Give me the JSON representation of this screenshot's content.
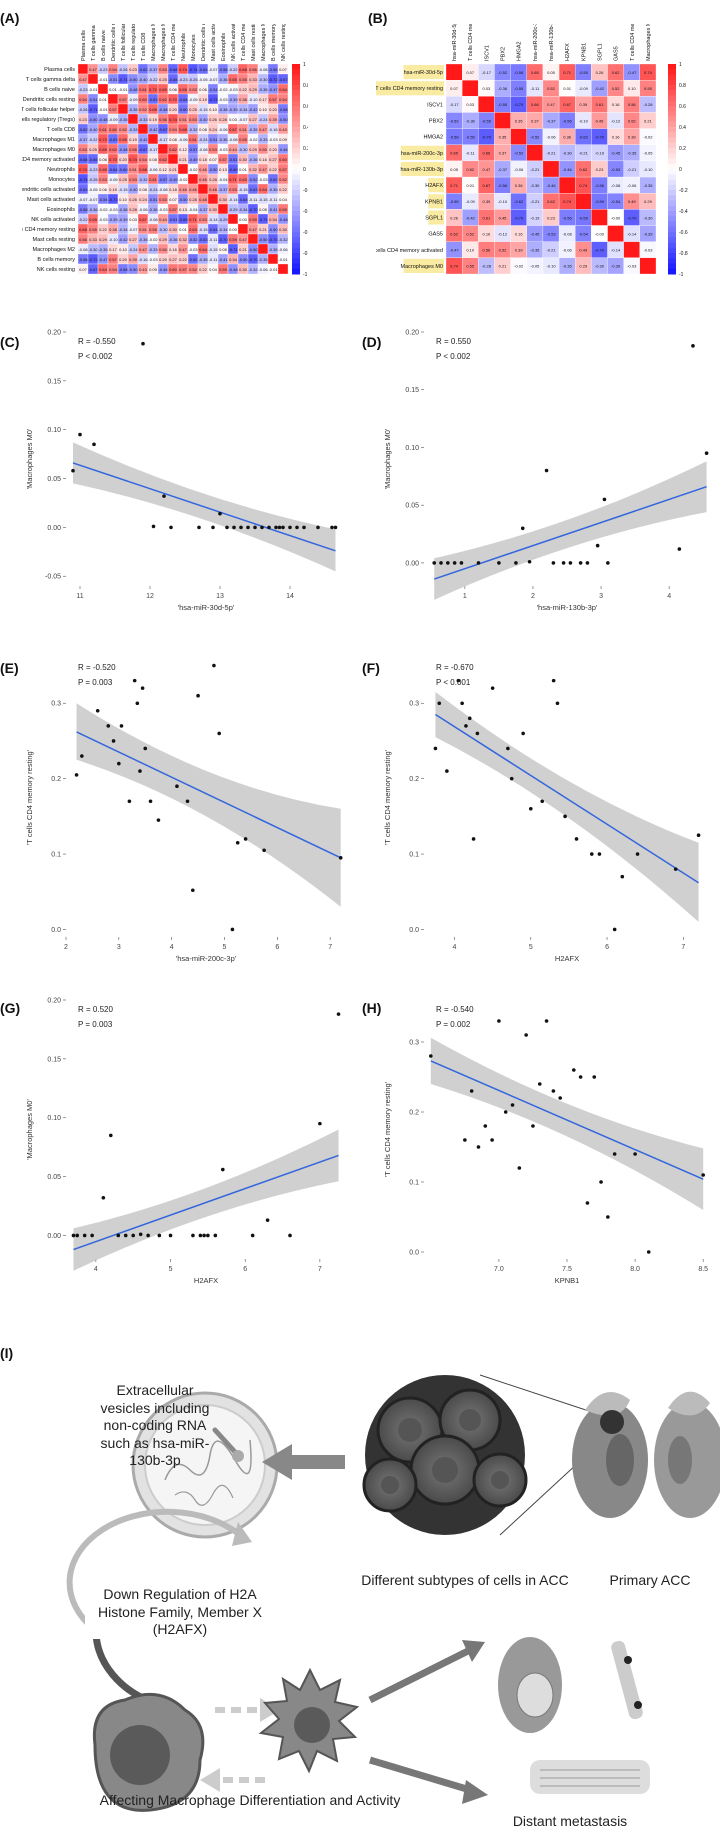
{
  "panels": {
    "A": "(A)",
    "B": "(B)",
    "C": "(C)",
    "D": "(D)",
    "E": "(E)",
    "F": "(F)",
    "G": "(G)",
    "H": "(H)",
    "I": "(I)"
  },
  "heatmap_a": {
    "labels": [
      "Plasma cells",
      "T cells gamma delta",
      "B cells naive",
      "Dendritic cells resting",
      "T cells follicular helper",
      "T cells regulatory (Tregs)",
      "T cells CD8",
      "Macrophages M1",
      "Macrophages M0",
      "T cells CD4 memory activated",
      "Neutrophils",
      "Monocytes",
      "Dendritic cells activated",
      "Mast cells activated",
      "Eosinophils",
      "NK cells activated",
      "T cells CD4 memory resting",
      "Mast cells resting",
      "Macrophages M2",
      "B cells memory",
      "NK cells resting"
    ],
    "colorbar_ticks": [
      "1",
      "0.8",
      "0.6",
      "0.4",
      "0.2",
      "0",
      "-0.2",
      "-0.4",
      "-0.6",
      "-0.8",
      "-1"
    ]
  },
  "heatmap_b": {
    "labels": [
      "hsa-miR-30d-5p",
      "T cells CD4 memory resting",
      "ISCV1",
      "PBX2",
      "HMGA2",
      "hsa-miR-200c-3p",
      "hsa-miR-130b-3p",
      "H2AFX",
      "KPNB1",
      "SGPL1",
      "GAS5",
      "T cells CD4 memory activated",
      "Macrophages M0"
    ],
    "highlighted": [
      "hsa-miR-30d-5p",
      "T cells CD4 memory resting",
      "hsa-miR-200c-3p",
      "hsa-miR-130b-3p",
      "H2AFX",
      "KPNB1",
      "SGPL1",
      "Macrophages M0"
    ],
    "colorbar_ticks": [
      "1",
      "0.8",
      "0.6",
      "0.4",
      "0.2",
      "0",
      "-0.2",
      "-0.4",
      "-0.6",
      "-0.8",
      "-1"
    ]
  },
  "scatters": {
    "C": {
      "r_label": "R = -0.550",
      "p_label": "P < 0.002",
      "xlabel": "'hsa-miR-30d-5p'",
      "ylabel": "'Macrophages M0'",
      "xticks": [
        "11",
        "12",
        "13",
        "14"
      ],
      "yticks": [
        "-0.05",
        "0.00",
        "0.05",
        "0.10",
        "0.15",
        "0.20"
      ]
    },
    "D": {
      "r_label": "R = 0.550",
      "p_label": "P < 0.002",
      "xlabel": "'hsa-miR-130b-3p'",
      "ylabel": "'Macrophages M0'",
      "xticks": [
        "1",
        "2",
        "3",
        "4"
      ],
      "yticks": [
        "0.00",
        "0.05",
        "0.10",
        "0.15",
        "0.20"
      ]
    },
    "E": {
      "r_label": "R = -0.520",
      "p_label": "P = 0.003",
      "xlabel": "'hsa-miR-200c-3p'",
      "ylabel": "'T cells CD4 memory resting'",
      "xticks": [
        "2",
        "3",
        "4",
        "5",
        "6",
        "7"
      ],
      "yticks": [
        "0.0",
        "0.1",
        "0.2",
        "0.3"
      ]
    },
    "F": {
      "r_label": "R = -0.670",
      "p_label": "P < 0.001",
      "xlabel": "H2AFX",
      "ylabel": "'T cells CD4 memory resting'",
      "xticks": [
        "4",
        "5",
        "6",
        "7"
      ],
      "yticks": [
        "0.0",
        "0.1",
        "0.2",
        "0.3"
      ]
    },
    "G": {
      "r_label": "R = 0.520",
      "p_label": "P = 0.003",
      "xlabel": "H2AFX",
      "ylabel": "'Macrophages M0'",
      "xticks": [
        "4",
        "5",
        "6",
        "7"
      ],
      "yticks": [
        "0.00",
        "0.05",
        "0.10",
        "0.15",
        "0.20"
      ]
    },
    "H": {
      "r_label": "R = -0.540",
      "p_label": "P = 0.002",
      "xlabel": "KPNB1",
      "ylabel": "'T cells CD4 memory resting'",
      "xticks": [
        "7.0",
        "7.5",
        "8.0",
        "8.5"
      ],
      "yticks": [
        "0.0",
        "0.1",
        "0.2",
        "0.3"
      ]
    }
  },
  "chart_data": [
    {
      "type": "scatter",
      "panel": "C",
      "xlim": [
        10.8,
        14.8
      ],
      "ylim": [
        -0.06,
        0.2
      ],
      "x": [
        10.9,
        11.0,
        11.2,
        11.9,
        12.05,
        12.2,
        12.3,
        12.7,
        12.9,
        13.0,
        13.1,
        13.2,
        13.3,
        13.4,
        13.5,
        13.6,
        13.7,
        13.8,
        13.85,
        13.9,
        14.0,
        14.1,
        14.2,
        14.4,
        14.6,
        14.65
      ],
      "y": [
        0.058,
        0.095,
        0.085,
        0.188,
        0.001,
        0.032,
        0.0,
        0.0,
        0.0,
        0.014,
        0.0,
        0.0,
        0.0,
        0.0,
        0.0,
        0.0,
        0.0,
        0.0,
        0.0,
        0.0,
        0.0,
        0.0,
        0.0,
        0.0,
        0.0,
        0.0
      ],
      "fit": {
        "x": [
          10.9,
          14.65
        ],
        "y": [
          0.066,
          -0.024
        ],
        "ci_low": [
          0.045,
          -0.045
        ],
        "ci_high": [
          0.087,
          -0.002
        ]
      }
    },
    {
      "type": "scatter",
      "panel": "D",
      "xlim": [
        0.4,
        4.6
      ],
      "ylim": [
        -0.02,
        0.2
      ],
      "x": [
        0.55,
        0.65,
        0.75,
        0.85,
        0.95,
        1.2,
        1.5,
        1.75,
        1.85,
        1.95,
        2.2,
        2.3,
        2.45,
        2.55,
        2.7,
        2.8,
        2.95,
        3.05,
        3.1,
        4.15,
        4.35,
        4.55
      ],
      "y": [
        0.0,
        0.0,
        0.0,
        0.0,
        0.0,
        0.0,
        0.0,
        0.0,
        0.03,
        0.001,
        0.08,
        0.0,
        0.0,
        0.0,
        0.0,
        0.0,
        0.015,
        0.055,
        0.0,
        0.012,
        0.188,
        0.095
      ],
      "fit": {
        "x": [
          0.55,
          4.55
        ],
        "y": [
          -0.014,
          0.066
        ],
        "ci_low": [
          -0.032,
          0.044
        ],
        "ci_high": [
          0.004,
          0.088
        ]
      }
    },
    {
      "type": "scatter",
      "panel": "E",
      "xlim": [
        2.0,
        7.3
      ],
      "ylim": [
        -0.01,
        0.36
      ],
      "x": [
        2.2,
        2.3,
        2.6,
        2.8,
        2.9,
        3.0,
        3.05,
        3.2,
        3.3,
        3.35,
        3.4,
        3.45,
        3.5,
        3.6,
        3.75,
        4.1,
        4.3,
        4.4,
        4.5,
        4.8,
        4.9,
        5.15,
        5.25,
        5.4,
        5.75,
        7.2
      ],
      "y": [
        0.205,
        0.23,
        0.29,
        0.27,
        0.25,
        0.22,
        0.27,
        0.17,
        0.33,
        0.3,
        0.21,
        0.32,
        0.24,
        0.17,
        0.145,
        0.19,
        0.17,
        0.052,
        0.31,
        0.35,
        0.26,
        0.0,
        0.115,
        0.12,
        0.105,
        0.095
      ],
      "fit": {
        "x": [
          2.2,
          7.2
        ],
        "y": [
          0.262,
          0.095
        ],
        "ci_low": [
          0.225,
          0.03
        ],
        "ci_high": [
          0.3,
          0.16
        ]
      }
    },
    {
      "type": "scatter",
      "panel": "F",
      "xlim": [
        3.6,
        7.35
      ],
      "ylim": [
        -0.01,
        0.36
      ],
      "x": [
        3.75,
        3.8,
        3.9,
        4.05,
        4.1,
        4.15,
        4.2,
        4.25,
        4.3,
        4.5,
        4.7,
        4.75,
        4.9,
        5.0,
        5.15,
        5.3,
        5.35,
        5.45,
        5.6,
        5.8,
        5.9,
        6.1,
        6.2,
        6.4,
        6.9,
        7.2
      ],
      "y": [
        0.24,
        0.3,
        0.21,
        0.33,
        0.3,
        0.27,
        0.28,
        0.12,
        0.26,
        0.32,
        0.24,
        0.2,
        0.26,
        0.16,
        0.17,
        0.33,
        0.3,
        0.15,
        0.12,
        0.1,
        0.1,
        0.0,
        0.07,
        0.1,
        0.08,
        0.125
      ],
      "fit": {
        "x": [
          3.75,
          7.2
        ],
        "y": [
          0.285,
          0.062
        ],
        "ci_low": [
          0.255,
          0.01
        ],
        "ci_high": [
          0.315,
          0.115
        ]
      }
    },
    {
      "type": "scatter",
      "panel": "G",
      "xlim": [
        3.6,
        7.35
      ],
      "ylim": [
        -0.02,
        0.2
      ],
      "x": [
        3.7,
        3.75,
        3.85,
        3.95,
        4.1,
        4.2,
        4.3,
        4.4,
        4.5,
        4.6,
        4.7,
        4.85,
        5.0,
        5.3,
        5.4,
        5.45,
        5.5,
        5.6,
        5.7,
        6.1,
        6.3,
        6.6,
        7.0,
        7.25
      ],
      "y": [
        0.0,
        0.0,
        0.0,
        0.0,
        0.032,
        0.085,
        0.0,
        0.0,
        0.0,
        0.001,
        0.0,
        0.0,
        0.0,
        0.0,
        0.0,
        0.0,
        0.0,
        0.0,
        0.056,
        0.0,
        0.013,
        0.0,
        0.095,
        0.188
      ],
      "fit": {
        "x": [
          3.7,
          7.25
        ],
        "y": [
          -0.012,
          0.068
        ],
        "ci_low": [
          -0.03,
          0.046
        ],
        "ci_high": [
          0.006,
          0.09
        ]
      }
    },
    {
      "type": "scatter",
      "panel": "H",
      "xlim": [
        6.45,
        8.55
      ],
      "ylim": [
        -0.01,
        0.36
      ],
      "x": [
        6.5,
        6.75,
        6.8,
        6.85,
        6.9,
        6.95,
        7.0,
        7.05,
        7.1,
        7.15,
        7.2,
        7.25,
        7.3,
        7.35,
        7.4,
        7.45,
        7.55,
        7.6,
        7.65,
        7.7,
        7.75,
        7.8,
        7.85,
        8.0,
        8.1,
        8.5
      ],
      "y": [
        0.28,
        0.16,
        0.23,
        0.15,
        0.18,
        0.16,
        0.33,
        0.2,
        0.21,
        0.12,
        0.31,
        0.18,
        0.24,
        0.33,
        0.23,
        0.22,
        0.26,
        0.25,
        0.07,
        0.25,
        0.1,
        0.05,
        0.14,
        0.14,
        0.0,
        0.11
      ],
      "fit": {
        "x": [
          6.5,
          8.5
        ],
        "y": [
          0.273,
          0.104
        ],
        "ci_low": [
          0.24,
          0.06
        ],
        "ci_high": [
          0.306,
          0.148
        ]
      }
    }
  ],
  "schematic": {
    "ev_text": "Extracellular vesicles including non-coding RNA such as hsa-miR-130b-3p",
    "subtypes_text": "Different subtypes of cells in ACC",
    "primary_text": "Primary ACC",
    "downreg_text": "Down Regulation of H2A Histone Family, Member X (H2AFX)",
    "macrophage_text": "Affecting Macrophage Differentiation and Activity",
    "metastasis_text": "Distant metastasis"
  }
}
